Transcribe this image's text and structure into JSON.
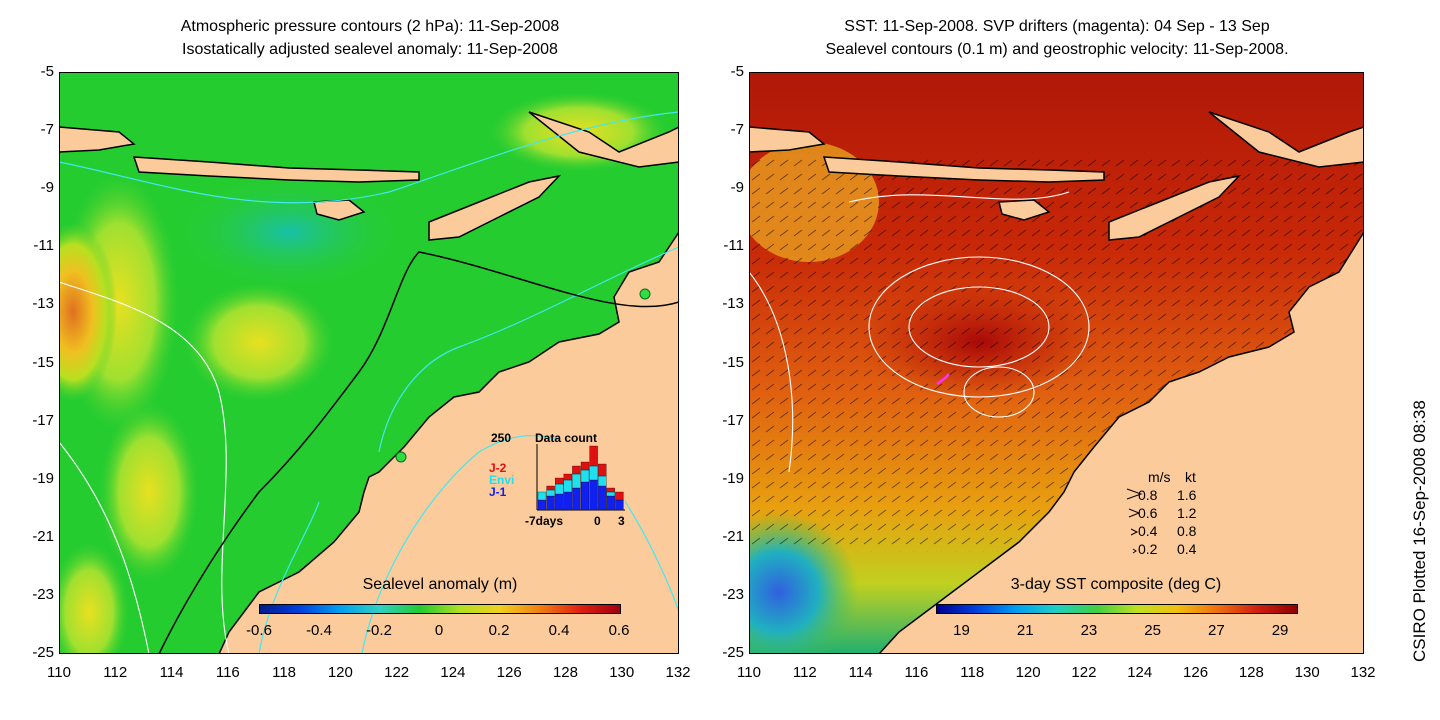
{
  "left": {
    "title_line1": "Atmospheric pressure contours (2 hPa): 11-Sep-2008",
    "title_line2": "Isostatically adjusted sealevel anomaly: 11-Sep-2008",
    "colorbar_label": "Sealevel anomaly (m)",
    "colorbar_ticks": [
      "-0.6",
      "-0.4",
      "-0.2",
      "0",
      "0.2",
      "0.4",
      "0.6"
    ],
    "inset": {
      "count_label": "250",
      "title": "Data count",
      "legend": [
        {
          "label": "J-2",
          "color": "#e01010"
        },
        {
          "label": "Envi",
          "color": "#20e0f0"
        },
        {
          "label": "J-1",
          "color": "#1020f0"
        }
      ],
      "x_ticks": [
        "-7days",
        "0",
        "3"
      ]
    }
  },
  "right": {
    "title_line1": "SST: 11-Sep-2008. SVP drifters (magenta): 04 Sep - 13 Sep",
    "title_line2": "Sealevel contours (0.1 m) and geostrophic velocity: 11-Sep-2008.",
    "colorbar_label": "3-day SST composite (deg C)",
    "colorbar_ticks": [
      "19",
      "21",
      "23",
      "25",
      "27",
      "29"
    ],
    "velocity_legend": {
      "header_ms": "m/s",
      "header_kt": "kt",
      "rows": [
        {
          "ms": "0.8",
          "kt": "1.6"
        },
        {
          "ms": "0.6",
          "kt": "1.2"
        },
        {
          "ms": "0.4",
          "kt": "0.8"
        },
        {
          "ms": "0.2",
          "kt": "0.4"
        }
      ]
    }
  },
  "axes": {
    "y_ticks": [
      "-5",
      "-7",
      "-9",
      "-11",
      "-13",
      "-15",
      "-17",
      "-19",
      "-21",
      "-23",
      "-25"
    ],
    "x_ticks": [
      "110",
      "112",
      "114",
      "116",
      "118",
      "120",
      "122",
      "124",
      "126",
      "128",
      "130",
      "132"
    ]
  },
  "stamp": "CSIRO Plotted 16-Sep-2008 08:38",
  "colors": {
    "land": "#fbcb9c",
    "sealevel_base": "#22cc33",
    "sst_warm": "#b01808",
    "sst_mid": "#e06010"
  }
}
